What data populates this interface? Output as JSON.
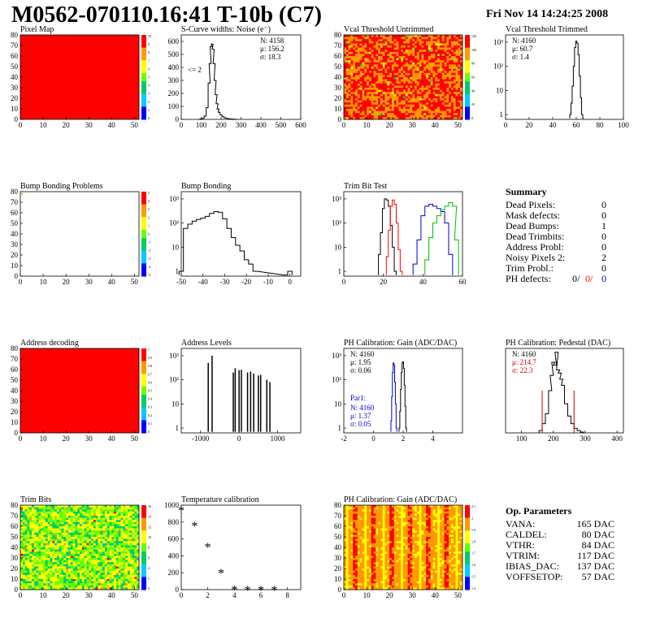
{
  "header": {
    "title": "M0562-070110.16:41 T-10b (C7)",
    "datetime": "Fri Nov 14 14:24:25 2008"
  },
  "chart_data": [
    {
      "id": "pixel-map",
      "type": "heatmap",
      "title": "Pixel Map",
      "xlim": [
        0,
        52
      ],
      "ylim": [
        0,
        80
      ],
      "xticks": [
        0,
        10,
        20,
        30,
        40,
        50
      ],
      "yticks": [
        0,
        10,
        20,
        30,
        40,
        50,
        60,
        70,
        80
      ],
      "palette": {
        "top": "#ff0000"
      },
      "uniform_bin": "top",
      "zticks": [
        "10",
        "9",
        "8",
        "7",
        "6",
        "5",
        "4",
        "3",
        "2",
        "1",
        "0"
      ]
    },
    {
      "id": "scurve-noise",
      "type": "line",
      "title": "S-Curve widths: Noise (e⁻)",
      "xlim": [
        0,
        600
      ],
      "ylim": [
        0,
        650
      ],
      "xticks": [
        0,
        100,
        200,
        300,
        400,
        500,
        600
      ],
      "yticks": [
        0,
        100,
        200,
        300,
        400,
        500,
        600
      ],
      "stats": {
        "n": "N: 4158",
        "mu": "μ: 156.2",
        "sigma": "σ: 18.3"
      },
      "annotation": "<= 2",
      "x": [
        90,
        100,
        110,
        120,
        130,
        140,
        145,
        150,
        155,
        160,
        165,
        170,
        175,
        180,
        185,
        190,
        200,
        210,
        220,
        230,
        240,
        250,
        260,
        270,
        280
      ],
      "y": [
        0,
        3,
        8,
        25,
        90,
        280,
        430,
        560,
        580,
        540,
        430,
        300,
        190,
        120,
        80,
        55,
        35,
        20,
        12,
        8,
        5,
        3,
        2,
        1,
        0
      ]
    },
    {
      "id": "vcal-untrimmed",
      "type": "heatmap",
      "title": "Vcal Threshold Untrimmed",
      "xlim": [
        0,
        52
      ],
      "ylim": [
        0,
        80
      ],
      "xticks": [
        0,
        10,
        20,
        30,
        40,
        50
      ],
      "yticks": [
        0,
        10,
        20,
        30,
        40,
        50,
        60,
        70,
        80
      ],
      "zticks": [
        "120",
        "100",
        "80",
        "60",
        "40",
        "20",
        "0"
      ],
      "pattern": "warm-noise"
    },
    {
      "id": "vcal-trimmed",
      "type": "line",
      "title": "Vcal Threshold Trimmed",
      "xlim": [
        0,
        100
      ],
      "ylog": true,
      "xticks": [
        0,
        20,
        40,
        60,
        80,
        100
      ],
      "yticks": [
        "1",
        "10",
        "10²",
        "10³"
      ],
      "stats": {
        "n": "N: 4160",
        "mu": "μ: 60.7",
        "sigma": "σ: 1.4"
      },
      "x": [
        55,
        56,
        57,
        58,
        59,
        60,
        61,
        62,
        63,
        64,
        65,
        66
      ],
      "y": [
        1,
        3,
        15,
        100,
        600,
        1100,
        900,
        300,
        40,
        5,
        1,
        0
      ]
    },
    {
      "id": "bump-bonding-problems",
      "type": "heatmap",
      "title": "Bump Bonding Problems",
      "xlim": [
        0,
        52
      ],
      "ylim": [
        0,
        80
      ],
      "xticks": [
        0,
        10,
        20,
        30,
        40,
        50
      ],
      "yticks": [
        0,
        10,
        20,
        30,
        40,
        50,
        60,
        70,
        80
      ],
      "zticks": [
        "5",
        "4",
        "3",
        "2",
        "1",
        "0",
        "-1",
        "-2",
        "-3",
        "-4",
        "-5"
      ],
      "uniform_bin": "empty"
    },
    {
      "id": "bump-bonding",
      "type": "line",
      "title": "Bump Bonding",
      "xlim": [
        -50,
        5
      ],
      "ylog": true,
      "xticks": [
        -50,
        -40,
        -30,
        -20,
        -10,
        0
      ],
      "yticks": [
        "1",
        "10",
        "10²",
        "10³"
      ],
      "x": [
        -50,
        -48,
        -46,
        -44,
        -42,
        -40,
        -38,
        -36,
        -34,
        -32,
        -30,
        -28,
        -26,
        -24,
        -22,
        -20,
        -18,
        -16,
        -2,
        0
      ],
      "y": [
        1,
        60,
        90,
        120,
        140,
        160,
        190,
        250,
        300,
        280,
        150,
        60,
        25,
        12,
        7,
        3,
        2,
        1,
        0,
        1
      ]
    },
    {
      "id": "trim-bit-test",
      "type": "line",
      "title": "Trim Bit Test",
      "xlim": [
        0,
        60
      ],
      "ylog": true,
      "xticks": [
        0,
        20,
        40,
        60
      ],
      "yticks": [
        "1",
        "10",
        "10²",
        "10³"
      ],
      "series": [
        {
          "color": "#000000",
          "x": [
            18,
            19,
            20,
            21,
            22,
            23,
            24,
            25,
            26
          ],
          "y": [
            5,
            40,
            400,
            1000,
            900,
            500,
            80,
            10,
            1
          ]
        },
        {
          "color": "#ff0000",
          "x": [
            22,
            23,
            24,
            25,
            26,
            27,
            28,
            29
          ],
          "y": [
            4,
            50,
            500,
            900,
            600,
            100,
            8,
            1
          ]
        },
        {
          "color": "#0000cc",
          "x": [
            36,
            38,
            40,
            42,
            44,
            46,
            48,
            50,
            52,
            54
          ],
          "y": [
            2,
            20,
            200,
            500,
            600,
            500,
            400,
            300,
            100,
            5
          ]
        },
        {
          "color": "#00bb00",
          "x": [
            42,
            44,
            46,
            48,
            50,
            52,
            54,
            56,
            57
          ],
          "y": [
            3,
            25,
            100,
            200,
            350,
            500,
            700,
            500,
            20
          ]
        }
      ]
    },
    {
      "id": "address-decoding",
      "type": "heatmap",
      "title": "Address decoding",
      "xlim": [
        0,
        52
      ],
      "ylim": [
        0,
        80
      ],
      "xticks": [
        0,
        10,
        20,
        30,
        40,
        50
      ],
      "yticks": [
        0,
        10,
        20,
        30,
        40,
        50,
        60,
        70,
        80
      ],
      "palette": {
        "top": "#ff0000"
      },
      "uniform_bin": "top",
      "zticks": [
        "1",
        "0.9",
        "0.8",
        "0.7",
        "0.6",
        "0.5",
        "0.4",
        "0.3",
        "0.2",
        "0.1",
        "0"
      ]
    },
    {
      "id": "address-levels",
      "type": "bar",
      "title": "Address Levels",
      "xlim": [
        -1500,
        1600
      ],
      "ylog": true,
      "xticks": [
        -1000,
        0,
        1000
      ],
      "yticks": [
        "1",
        "10",
        "10²",
        "10³"
      ],
      "x": [
        -800,
        -700,
        -150,
        -100,
        0,
        60,
        220,
        300,
        380,
        500,
        560,
        720,
        800
      ],
      "y": [
        500,
        1000,
        200,
        300,
        250,
        260,
        200,
        220,
        180,
        150,
        160,
        100,
        80
      ]
    },
    {
      "id": "ph-gain",
      "type": "line",
      "title": "PH Calibration: Gain (ADC/DAC)",
      "xlim": [
        -2,
        6
      ],
      "ylog": true,
      "xticks": [
        -2,
        0,
        2,
        4
      ],
      "yticks": [
        "1",
        "10",
        "10²",
        "10³"
      ],
      "stats": {
        "n": "N: 4160",
        "mu": "μ: 1.95",
        "sigma": "σ: 0.06"
      },
      "par1": {
        "label": "Par1:",
        "n": "N: 4160",
        "mu": "μ: 1.37",
        "sigma": "σ: 0.05"
      },
      "series": [
        {
          "color": "#000000",
          "x": [
            1.75,
            1.8,
            1.85,
            1.9,
            1.95,
            2.0,
            2.05,
            2.1,
            2.15,
            2.2
          ],
          "y": [
            1,
            5,
            40,
            200,
            500,
            550,
            300,
            60,
            8,
            1
          ]
        },
        {
          "color": "#0000cc",
          "x": [
            1.2,
            1.25,
            1.3,
            1.35,
            1.4,
            1.45,
            1.5,
            1.55
          ],
          "y": [
            2,
            20,
            200,
            500,
            400,
            80,
            10,
            1
          ]
        }
      ]
    },
    {
      "id": "ph-pedestal",
      "type": "line",
      "title": "PH Calibration: Pedestal (DAC)",
      "xlim": [
        50,
        420
      ],
      "ylim": [
        0,
        110
      ],
      "xticks": [
        100,
        200,
        300,
        400
      ],
      "yticks": [],
      "stats": {
        "n": "N: 4160",
        "mu": "μ: 214.7",
        "sigma": "σ: 22.3"
      },
      "x": [
        160,
        170,
        180,
        190,
        195,
        200,
        205,
        210,
        215,
        220,
        225,
        230,
        240,
        250,
        260,
        270,
        280,
        290
      ],
      "y": [
        3,
        12,
        25,
        55,
        75,
        92,
        88,
        105,
        82,
        78,
        70,
        62,
        38,
        22,
        12,
        6,
        3,
        1
      ]
    },
    {
      "id": "trim-bits",
      "type": "heatmap",
      "title": "Trim Bits",
      "xlim": [
        0,
        52
      ],
      "ylim": [
        0,
        80
      ],
      "xticks": [
        0,
        10,
        20,
        30,
        40,
        50
      ],
      "yticks": [
        0,
        10,
        20,
        30,
        40,
        50,
        60,
        70,
        80
      ],
      "zticks": [
        "16",
        "14",
        "12",
        "10",
        "8",
        "6",
        "4",
        "2",
        "0"
      ],
      "pattern": "green-noise"
    },
    {
      "id": "temperature-calibration",
      "type": "scatter",
      "title": "Temperature calibration",
      "xlim": [
        0,
        9
      ],
      "ylim": [
        0,
        1000
      ],
      "xticks": [
        0,
        2,
        4,
        6,
        8
      ],
      "yticks": [
        0,
        200,
        400,
        600,
        800,
        1000
      ],
      "x": [
        0,
        1,
        2,
        3,
        4,
        5,
        6,
        7
      ],
      "y": [
        940,
        760,
        510,
        200,
        5,
        0,
        0,
        0
      ]
    },
    {
      "id": "ph-gain-map",
      "type": "heatmap",
      "title": "PH Calibration: Gain (ADC/DAC)",
      "xlim": [
        0,
        52
      ],
      "ylim": [
        0,
        80
      ],
      "xticks": [
        0,
        10,
        20,
        30,
        40,
        50
      ],
      "yticks": [
        0,
        10,
        20,
        30,
        40,
        50,
        60,
        70,
        80
      ],
      "zticks": [
        "2.1",
        "2",
        "1.9",
        "1.8",
        "1.7",
        "1.6",
        "1.5",
        "1.4"
      ],
      "pattern": "stripe-noise"
    }
  ],
  "summary": {
    "title": "Summary",
    "rows": [
      {
        "label": "Dead Pixels:",
        "value": "0"
      },
      {
        "label": "Mask defects:",
        "value": "0"
      },
      {
        "label": "Dead Bumps:",
        "value": "1"
      },
      {
        "label": "Dead Trimbits:",
        "value": "0"
      },
      {
        "label": "Address Probl:",
        "value": "0"
      },
      {
        "label": "Noisy Pixels 2:",
        "value": "2"
      },
      {
        "label": "Trim Probl.:",
        "value": "0"
      }
    ],
    "ph_label": "PH defects:",
    "ph_values": [
      {
        "v": "0/",
        "c": "#000000"
      },
      {
        "v": "0/",
        "c": "#ff0000"
      },
      {
        "v": "0",
        "c": "#0000cc"
      }
    ]
  },
  "op_params": {
    "title": "Op. Parameters",
    "rows": [
      {
        "label": "VANA:",
        "value": "165 DAC"
      },
      {
        "label": "CALDEL:",
        "value": "80 DAC"
      },
      {
        "label": "VTHR:",
        "value": "84 DAC"
      },
      {
        "label": "VTRIM:",
        "value": "117 DAC"
      },
      {
        "label": "IBIAS_DAC:",
        "value": "137 DAC"
      },
      {
        "label": "VOFFSETOP:",
        "value": "57 DAC"
      }
    ]
  }
}
